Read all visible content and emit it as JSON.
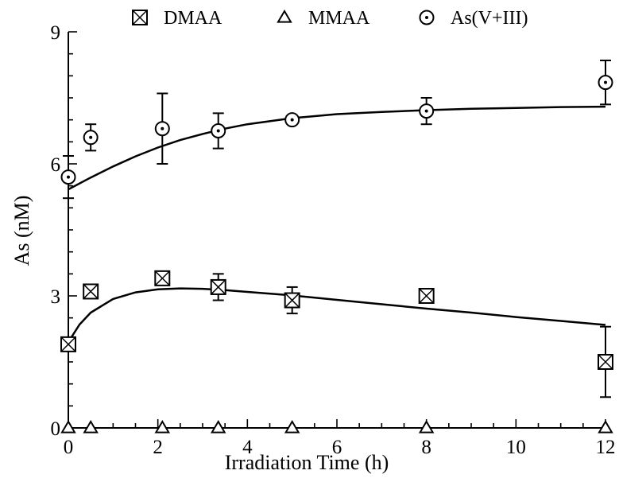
{
  "chart_data": {
    "type": "scatter",
    "xlabel": "Irradiation Time (h)",
    "ylabel": "As (nM)",
    "xlim": [
      0,
      12
    ],
    "ylim": [
      0,
      9
    ],
    "xticks": [
      0,
      2,
      4,
      6,
      8,
      10,
      12
    ],
    "xticks_minor_step": 0.5,
    "yticks": [
      0,
      3,
      6,
      9
    ],
    "yticks_minor_step": 0.5,
    "legend_position": "top",
    "grid": false,
    "series": [
      {
        "name": "DMAA",
        "marker": "boxed-x",
        "points": [
          {
            "x": 0,
            "y": 1.9,
            "err": 0.1
          },
          {
            "x": 0.5,
            "y": 3.1,
            "err": 0.12
          },
          {
            "x": 2.1,
            "y": 3.4,
            "err": 0.15
          },
          {
            "x": 3.35,
            "y": 3.2,
            "err": 0.3
          },
          {
            "x": 5,
            "y": 2.9,
            "err": 0.3
          },
          {
            "x": 8,
            "y": 3.0,
            "err": 0.1
          },
          {
            "x": 12,
            "y": 1.5,
            "err": 0.8
          }
        ],
        "fit": [
          [
            0,
            1.95
          ],
          [
            0.25,
            2.35
          ],
          [
            0.5,
            2.62
          ],
          [
            1,
            2.93
          ],
          [
            1.5,
            3.08
          ],
          [
            2,
            3.15
          ],
          [
            2.5,
            3.17
          ],
          [
            3,
            3.16
          ],
          [
            3.5,
            3.13
          ],
          [
            4,
            3.09
          ],
          [
            5,
            3.01
          ],
          [
            6,
            2.91
          ],
          [
            7,
            2.81
          ],
          [
            8,
            2.71
          ],
          [
            9,
            2.62
          ],
          [
            10,
            2.52
          ],
          [
            11,
            2.43
          ],
          [
            12,
            2.34
          ]
        ]
      },
      {
        "name": "MMAA",
        "marker": "triangle",
        "points": [
          {
            "x": 0,
            "y": 0
          },
          {
            "x": 0.5,
            "y": 0
          },
          {
            "x": 2.1,
            "y": 0
          },
          {
            "x": 3.35,
            "y": 0
          },
          {
            "x": 5,
            "y": 0
          },
          {
            "x": 8,
            "y": 0
          },
          {
            "x": 12,
            "y": 0
          }
        ],
        "fit": []
      },
      {
        "name": "As(V+III)",
        "marker": "dotted-circle",
        "points": [
          {
            "x": 0,
            "y": 5.7,
            "err": 0.48
          },
          {
            "x": 0.5,
            "y": 6.6,
            "err": 0.3
          },
          {
            "x": 2.1,
            "y": 6.8,
            "err": 0.8
          },
          {
            "x": 3.35,
            "y": 6.75,
            "err": 0.4
          },
          {
            "x": 5,
            "y": 7.0,
            "err": 0.08
          },
          {
            "x": 8,
            "y": 7.2,
            "err": 0.3
          },
          {
            "x": 12,
            "y": 7.85,
            "err": 0.5
          }
        ],
        "fit": [
          [
            0,
            5.42
          ],
          [
            0.5,
            5.69
          ],
          [
            1,
            5.94
          ],
          [
            1.5,
            6.17
          ],
          [
            2,
            6.37
          ],
          [
            2.5,
            6.54
          ],
          [
            3,
            6.68
          ],
          [
            3.5,
            6.8
          ],
          [
            4,
            6.9
          ],
          [
            5,
            7.04
          ],
          [
            6,
            7.13
          ],
          [
            7,
            7.18
          ],
          [
            8,
            7.22
          ],
          [
            9,
            7.25
          ],
          [
            10,
            7.27
          ],
          [
            11,
            7.29
          ],
          [
            12,
            7.3
          ]
        ]
      }
    ]
  }
}
